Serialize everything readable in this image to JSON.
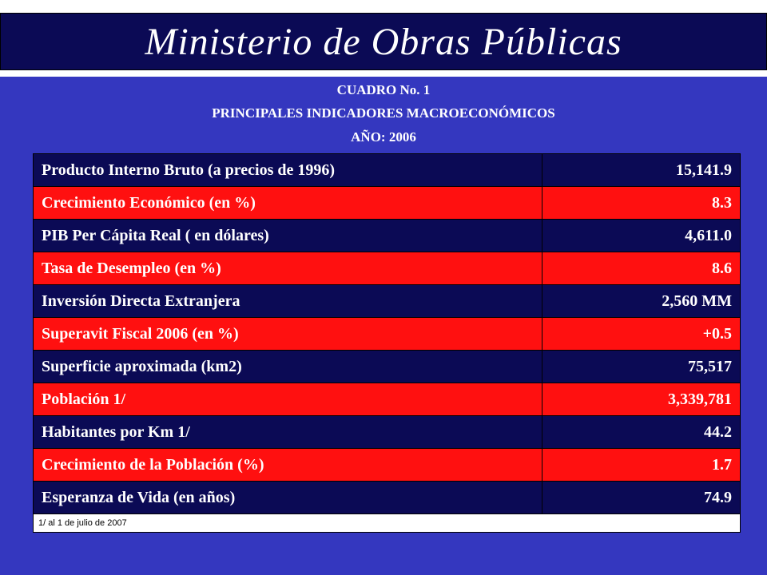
{
  "header": {
    "title": "Ministerio de Obras Públicas"
  },
  "caption": {
    "line1": "CUADRO No. 1",
    "line2": "PRINCIPALES INDICADORES MACROECONÓMICOS",
    "line3": "AÑO: 2006"
  },
  "table": {
    "rows": [
      {
        "label": "Producto Interno Bruto (a precios de 1996)",
        "value": "15,141.9"
      },
      {
        "label": "Crecimiento Económico (en %)",
        "value": "8.3"
      },
      {
        "label": "PIB Per Cápita Real ( en dólares)",
        "value": "4,611.0"
      },
      {
        "label": "Tasa de Desempleo (en %)",
        "value": "8.6"
      },
      {
        "label": "Inversión Directa Extranjera",
        "value": "2,560 MM"
      },
      {
        "label": "Superavit Fiscal 2006 (en %)",
        "value": "+0.5"
      },
      {
        "label": "Superficie aproximada (km2)",
        "value": "75,517"
      },
      {
        "label": "Población 1/",
        "value": "3,339,781"
      },
      {
        "label": "Habitantes por Km 1/",
        "value": "44.2"
      },
      {
        "label": "Crecimiento de la Población (%)",
        "value": "1.7"
      },
      {
        "label": "Esperanza de Vida (en años)",
        "value": "74.9"
      }
    ],
    "footnote": "1/ al 1 de julio de 2007"
  },
  "colors": {
    "background": "#3437bf",
    "dark_row": "#0b0a55",
    "red_row": "#ff1010"
  }
}
